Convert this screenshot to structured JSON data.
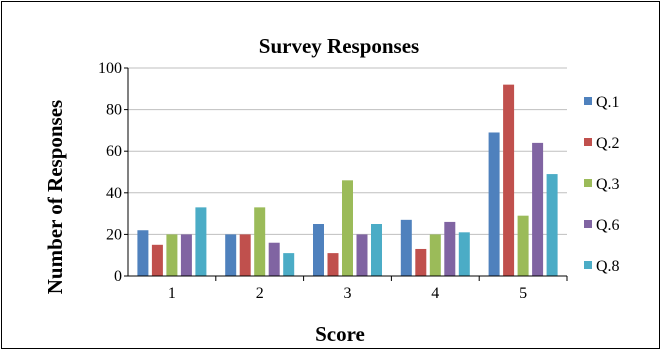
{
  "chart_data": {
    "type": "bar",
    "title": "Survey Responses",
    "xlabel": "Score",
    "ylabel": "Number of Responses",
    "categories": [
      "1",
      "2",
      "3",
      "4",
      "5"
    ],
    "ylim": [
      0,
      100
    ],
    "yticks": [
      0,
      20,
      40,
      60,
      80,
      100
    ],
    "grid": true,
    "legend_position": "right",
    "series": [
      {
        "name": "Q.1",
        "color": "#4F81BD",
        "values": [
          22,
          20,
          25,
          27,
          69
        ]
      },
      {
        "name": "Q.2",
        "color": "#C0504D",
        "values": [
          15,
          20,
          11,
          13,
          92
        ]
      },
      {
        "name": "Q.3",
        "color": "#9BBB59",
        "values": [
          20,
          33,
          46,
          20,
          29
        ]
      },
      {
        "name": "Q.6",
        "color": "#8064A2",
        "values": [
          20,
          16,
          20,
          26,
          64
        ]
      },
      {
        "name": "Q.8",
        "color": "#4BACC6",
        "values": [
          33,
          11,
          25,
          21,
          49
        ]
      }
    ]
  }
}
